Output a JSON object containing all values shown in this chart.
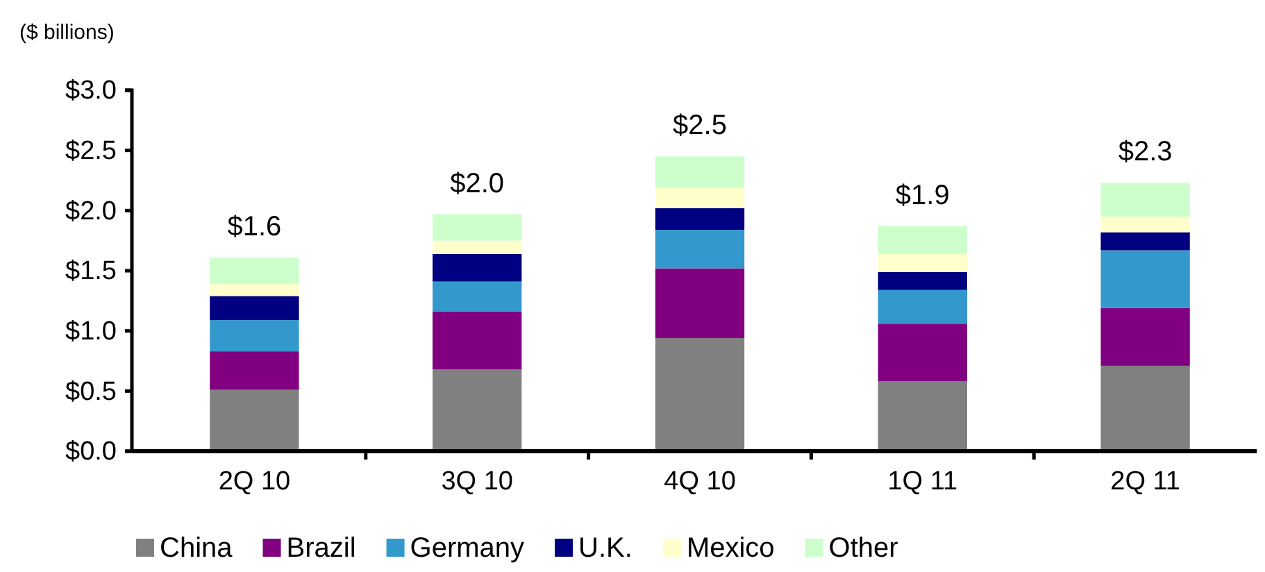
{
  "chart_data": {
    "type": "bar",
    "stacked": true,
    "ylabel": "($ billions)",
    "categories": [
      "2Q 10",
      "3Q 10",
      "4Q 10",
      "1Q 11",
      "2Q 11"
    ],
    "series": [
      {
        "name": "China",
        "color": "#808080",
        "values": [
          0.51,
          0.68,
          0.94,
          0.58,
          0.71
        ]
      },
      {
        "name": "Brazil",
        "color": "#800080",
        "values": [
          0.32,
          0.48,
          0.58,
          0.48,
          0.48
        ]
      },
      {
        "name": "Germany",
        "color": "#3399cc",
        "values": [
          0.26,
          0.25,
          0.32,
          0.28,
          0.48
        ]
      },
      {
        "name": "U.K.",
        "color": "#000080",
        "values": [
          0.2,
          0.23,
          0.18,
          0.15,
          0.15
        ]
      },
      {
        "name": "Mexico",
        "color": "#ffffcc",
        "values": [
          0.1,
          0.11,
          0.17,
          0.15,
          0.13
        ]
      },
      {
        "name": "Other",
        "color": "#ccffcc",
        "values": [
          0.22,
          0.22,
          0.26,
          0.23,
          0.28
        ]
      }
    ],
    "totals": [
      "$1.6",
      "$2.0",
      "$2.5",
      "$1.9",
      "$2.3"
    ],
    "ylim": [
      0,
      3
    ],
    "yticks": [
      {
        "value": 0,
        "label": "$0.0"
      },
      {
        "value": 0.5,
        "label": "$0.5"
      },
      {
        "value": 1,
        "label": "$1.0"
      },
      {
        "value": 1.5,
        "label": "$1.5"
      },
      {
        "value": 2,
        "label": "$2.0"
      },
      {
        "value": 2.5,
        "label": "$2.5"
      },
      {
        "value": 3,
        "label": "$3.0"
      }
    ],
    "grid": false,
    "legend": "bottom"
  }
}
